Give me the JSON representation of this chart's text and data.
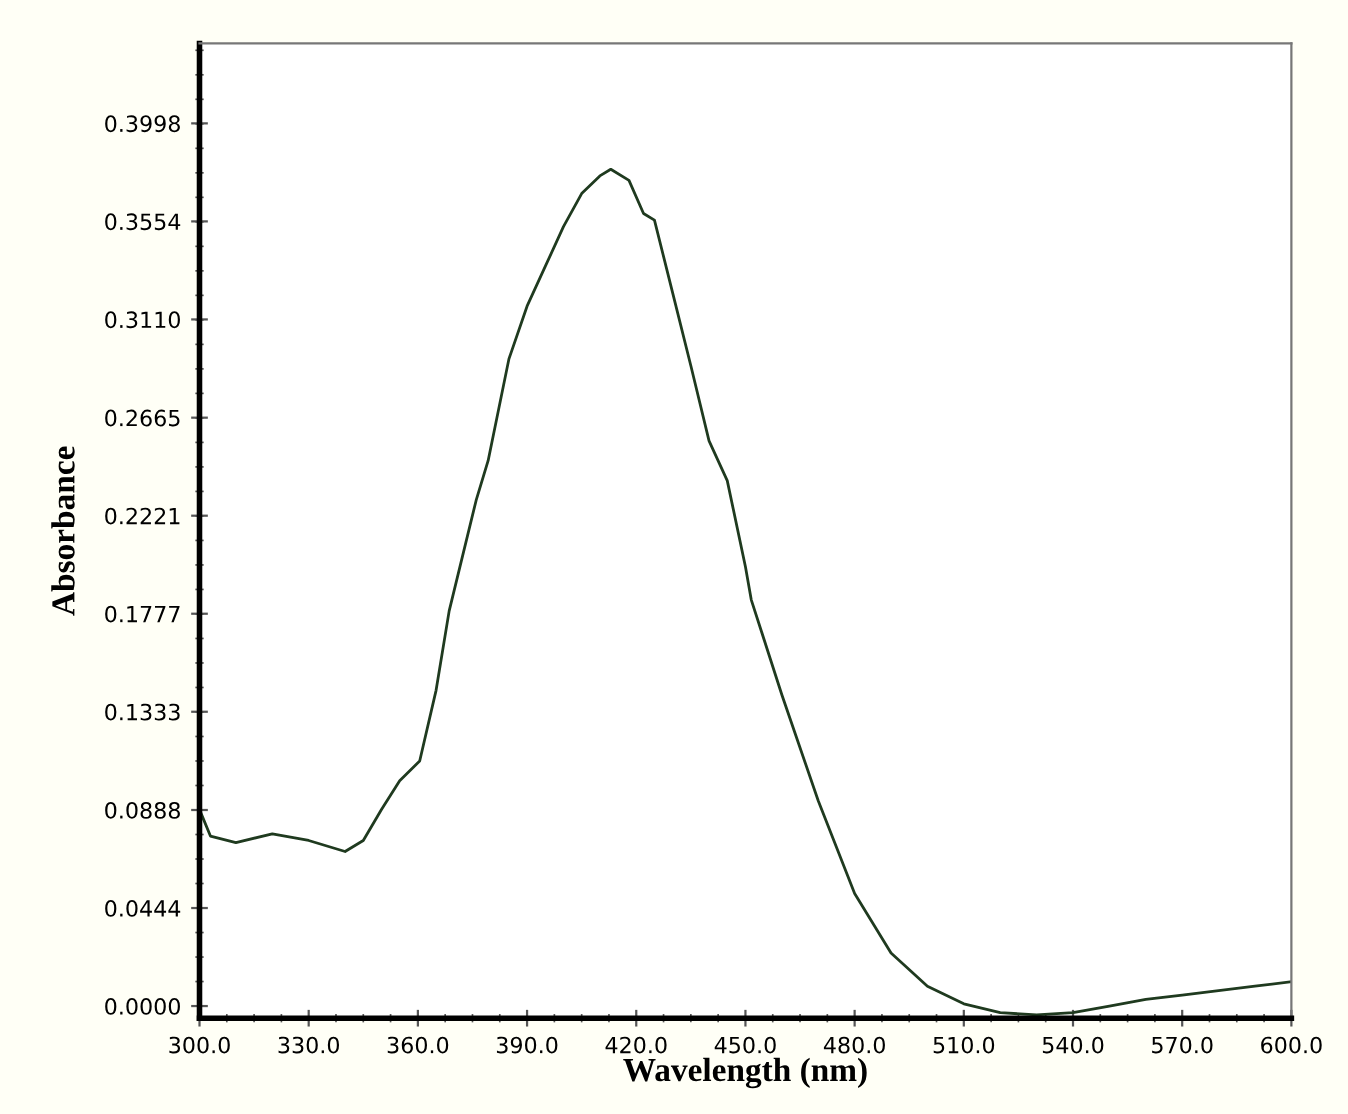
{
  "chart_data": {
    "type": "line",
    "xlabel": "Wavelength (nm)",
    "ylabel": "Absorbance",
    "xlim": [
      300,
      600
    ],
    "ylim": [
      -0.0055,
      0.436
    ],
    "xticks": [
      {
        "value": 300,
        "label": "300.0"
      },
      {
        "value": 330,
        "label": "330.0"
      },
      {
        "value": 360,
        "label": "360.0"
      },
      {
        "value": 390,
        "label": "390.0"
      },
      {
        "value": 420,
        "label": "420.0"
      },
      {
        "value": 450,
        "label": "450.0"
      },
      {
        "value": 480,
        "label": "480.0"
      },
      {
        "value": 510,
        "label": "510.0"
      },
      {
        "value": 540,
        "label": "540.0"
      },
      {
        "value": 570,
        "label": "570.0"
      },
      {
        "value": 600,
        "label": "600.0"
      }
    ],
    "yticks": [
      {
        "value": 0,
        "label": "0.0000"
      },
      {
        "value": 0.0444,
        "label": "0.0444"
      },
      {
        "value": 0.0888,
        "label": "0.0888"
      },
      {
        "value": 0.1333,
        "label": "0.1333"
      },
      {
        "value": 0.1777,
        "label": "0.1777"
      },
      {
        "value": 0.2221,
        "label": "0.2221"
      },
      {
        "value": 0.2665,
        "label": "0.2665"
      },
      {
        "value": 0.311,
        "label": "0.3110"
      },
      {
        "value": 0.3554,
        "label": "0.3554"
      },
      {
        "value": 0.3998,
        "label": "0.3998"
      }
    ],
    "grid": false,
    "legend": false,
    "marker": "none",
    "line_style": "solid",
    "series": [
      {
        "color": "#1f3a1f",
        "x": [
          300,
          301,
          303,
          310,
          320,
          330,
          340,
          345,
          350,
          355,
          360.5,
          365,
          368.6,
          372,
          376,
          379.3,
          385,
          390,
          395,
          400,
          405,
          410,
          413,
          418,
          422,
          425,
          430,
          435,
          440,
          445,
          450,
          451.6,
          460,
          470,
          480,
          490,
          500,
          510,
          520,
          530,
          540,
          550,
          560,
          570,
          580,
          590,
          600
        ],
        "values": [
          0.089,
          0.085,
          0.077,
          0.074,
          0.078,
          0.075,
          0.07,
          0.075,
          0.089,
          0.102,
          0.111,
          0.143,
          0.179,
          0.202,
          0.229,
          0.247,
          0.293,
          0.317,
          0.335,
          0.353,
          0.368,
          0.376,
          0.379,
          0.374,
          0.359,
          0.356,
          0.323,
          0.29,
          0.256,
          0.238,
          0.199,
          0.184,
          0.141,
          0.093,
          0.051,
          0.024,
          0.009,
          0.001,
          -0.003,
          -0.004,
          -0.003,
          0.0,
          0.003,
          0.005,
          0.007,
          0.009,
          0.011
        ]
      }
    ]
  }
}
